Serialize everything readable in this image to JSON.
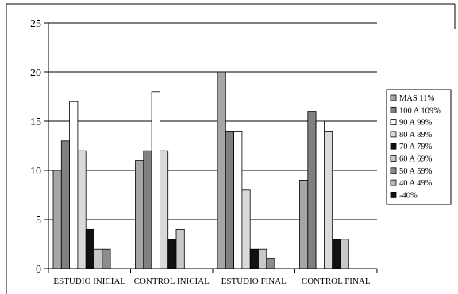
{
  "chart_data": {
    "type": "bar",
    "title": "",
    "xlabel": "",
    "ylabel": "",
    "ylim": [
      0,
      25
    ],
    "yticks": [
      0,
      5,
      10,
      15,
      20,
      25
    ],
    "grid": true,
    "legend_position": "right",
    "categories": [
      "ESTUDIO INICIAL",
      "CONTROL INICIAL",
      "ESTUDIO FINAL",
      "CONTROL FINAL"
    ],
    "series": [
      {
        "name": "MAS 11%",
        "color": "#a6a6a6",
        "values": [
          10,
          11,
          20,
          9
        ]
      },
      {
        "name": "100 A 109%",
        "color": "#808080",
        "values": [
          13,
          12,
          14,
          16
        ]
      },
      {
        "name": "90 A 99%",
        "color": "#ffffff",
        "values": [
          17,
          18,
          14,
          15
        ]
      },
      {
        "name": "80 A 89%",
        "color": "#d9d9d9",
        "values": [
          12,
          12,
          8,
          14
        ]
      },
      {
        "name": "70 A 79%",
        "color": "#111111",
        "values": [
          4,
          3,
          2,
          3
        ]
      },
      {
        "name": "60 A 69%",
        "color": "#c8c8c8",
        "values": [
          2,
          4,
          2,
          3
        ]
      },
      {
        "name": "50 A 59%",
        "color": "#8c8c8c",
        "values": [
          2,
          0,
          1,
          0
        ]
      },
      {
        "name": "40 A 49%",
        "color": "#b8b8b8",
        "values": [
          0,
          0,
          0,
          0
        ]
      },
      {
        "name": "-40%",
        "color": "#111111",
        "values": [
          0,
          0,
          0,
          0
        ]
      }
    ]
  }
}
